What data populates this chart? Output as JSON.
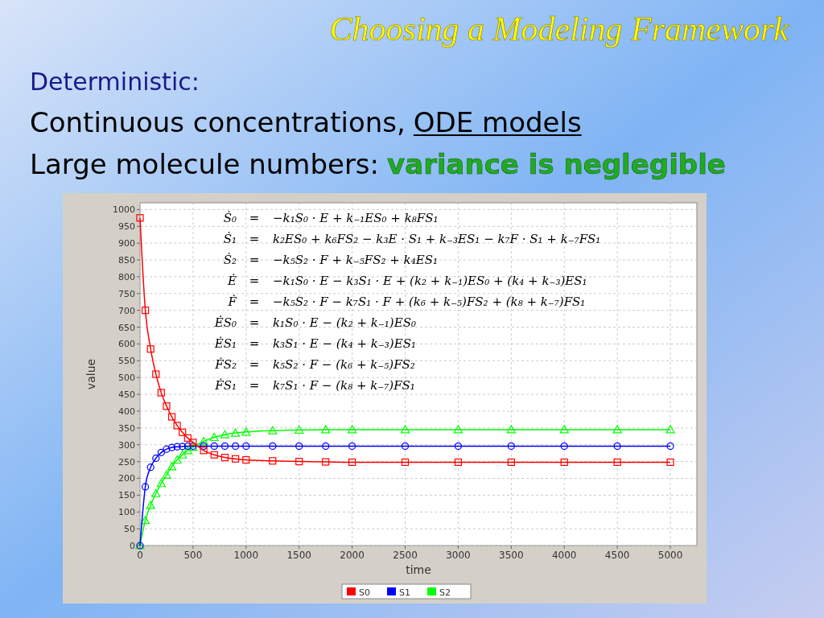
{
  "chart_data": {
    "type": "line",
    "title": "Choosing a Modeling Framework",
    "xlabel": "time",
    "ylabel": "value",
    "annotations": [
      "Deterministic:",
      "Continuous concentrations,",
      "ODE models",
      "Large molecule numbers:",
      "variance is neglegible",
      "Ṡ₀ = −k₁S₀ · E + k₋₁ES₀ + k₈FS₁",
      "Ṡ₁ = k₂ES₀ + k₆FS₂ − k₃E · S₁ + k₋₃ES₁ − k₇F · S₁ + k₋₇FS₁",
      "Ṡ₂ = −k₅S₂ · F + k₋₅FS₂ + k₄ES₁",
      "Ė = −k₁S₀ · E − k₃S₁ · E + (k₂ + k₋₁)ES₀ + (k₄ + k₋₃)ES₁",
      "Ḟ = −k₅S₂ · F − k₇S₁ · F + (k₆ + k₋₅)FS₂ + (k₈ + k₋₇)FS₁",
      "ĖS₀ = k₁S₀ · E − (k₂ + k₋₁)ES₀",
      "ĖS₁ = k₃S₁ · E − (k₄ + k₋₃)ES₁",
      "ḞS₂ = k₅S₂ · F − (k₆ + k₋₅)FS₂",
      "ḞS₁ = k₇S₁ · F − (k₈ + k₋₇)FS₁"
    ],
    "x": [
      0,
      50,
      100,
      150,
      200,
      250,
      300,
      350,
      400,
      450,
      500,
      600,
      700,
      800,
      900,
      1000,
      1250,
      1500,
      1750,
      2000,
      2500,
      3000,
      3500,
      4000,
      4500,
      5000
    ],
    "series": [
      {
        "name": "S0",
        "color": "#ff0000",
        "marker": "square",
        "values": [
          975,
          700,
          585,
          510,
          455,
          415,
          383,
          357,
          337,
          320,
          307,
          283,
          270,
          262,
          258,
          255,
          252,
          250,
          249,
          248,
          248,
          248,
          248,
          248,
          248,
          248
        ]
      },
      {
        "name": "S1",
        "color": "#0000ff",
        "marker": "circle",
        "values": [
          0,
          175,
          233,
          260,
          277,
          287,
          292,
          294,
          295,
          296,
          296,
          296,
          296,
          296,
          296,
          296,
          296,
          296,
          296,
          296,
          296,
          296,
          296,
          296,
          296,
          296
        ]
      },
      {
        "name": "S2",
        "color": "#00ff00",
        "marker": "triangle",
        "values": [
          0,
          75,
          120,
          155,
          185,
          210,
          235,
          255,
          270,
          283,
          293,
          310,
          322,
          330,
          335,
          338,
          342,
          344,
          345,
          345,
          345,
          345,
          345,
          345,
          345,
          345
        ]
      }
    ],
    "xlim": [
      0,
      5250
    ],
    "ylim": [
      0,
      1020
    ],
    "xticks": [
      0,
      500,
      1000,
      1500,
      2000,
      2500,
      3000,
      3500,
      4000,
      4500,
      5000
    ],
    "yticks": [
      0,
      50,
      100,
      150,
      200,
      250,
      300,
      350,
      400,
      450,
      500,
      550,
      600,
      650,
      700,
      750,
      800,
      850,
      900,
      950,
      1000
    ],
    "grid": true,
    "legend": "bottom",
    "line_style": "solid"
  }
}
